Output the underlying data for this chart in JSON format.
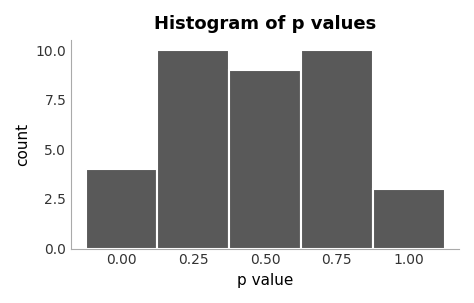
{
  "title": "Histogram of p values",
  "xlabel": "p value",
  "ylabel": "count",
  "bar_color": "#595959",
  "bar_edgecolor": "#ffffff",
  "bar_linewidth": 1.5,
  "background_color": "#ffffff",
  "bin_edges": [
    -0.125,
    0.125,
    0.375,
    0.625,
    0.875,
    1.125
  ],
  "counts": [
    4,
    10,
    9,
    10,
    3
  ],
  "xlim": [
    -0.175,
    1.175
  ],
  "ylim": [
    0,
    10.5
  ],
  "yticks": [
    0.0,
    2.5,
    5.0,
    7.5,
    10.0
  ],
  "xticks": [
    0.0,
    0.25,
    0.5,
    0.75,
    1.0
  ],
  "title_fontsize": 13,
  "axis_label_fontsize": 11,
  "tick_fontsize": 10
}
